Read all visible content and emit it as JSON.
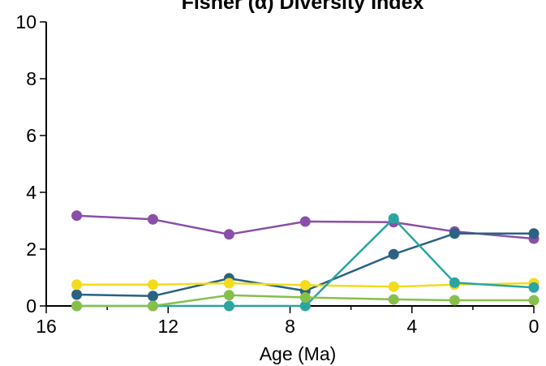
{
  "chart_data": {
    "type": "line",
    "title": "Fisher (α) Diversity Index",
    "xlabel": "Age (Ma)",
    "ylabel": "",
    "xlim": [
      16,
      0
    ],
    "ylim": [
      0,
      10
    ],
    "x_tick_labels": [
      "16",
      "12",
      "8",
      "4",
      "0"
    ],
    "y_tick_labels": [
      "0",
      "2",
      "4",
      "6",
      "8",
      "10"
    ],
    "x_minor_ticks": [
      14,
      10,
      6,
      2
    ],
    "grid": false,
    "x": [
      15,
      12.5,
      10,
      7.5,
      4.6,
      2.6,
      0
    ],
    "series": [
      {
        "color": "#8a4fa8",
        "values": [
          3.18,
          3.05,
          2.52,
          2.97,
          2.95,
          2.62,
          2.37
        ]
      },
      {
        "color": "#2a6282",
        "values": [
          0.4,
          0.35,
          0.97,
          0.53,
          1.82,
          2.55,
          2.55
        ]
      },
      {
        "color": "#f2dc1b",
        "values": [
          0.75,
          0.75,
          0.8,
          0.73,
          0.68,
          0.75,
          0.8
        ]
      },
      {
        "color": "#2aa5a1",
        "values": [
          0.0,
          0.0,
          0.0,
          0.0,
          3.08,
          0.82,
          0.65
        ]
      },
      {
        "color": "#86c04a",
        "values": [
          0.0,
          0.0,
          0.38,
          0.3,
          0.23,
          0.2,
          0.2
        ]
      }
    ]
  }
}
